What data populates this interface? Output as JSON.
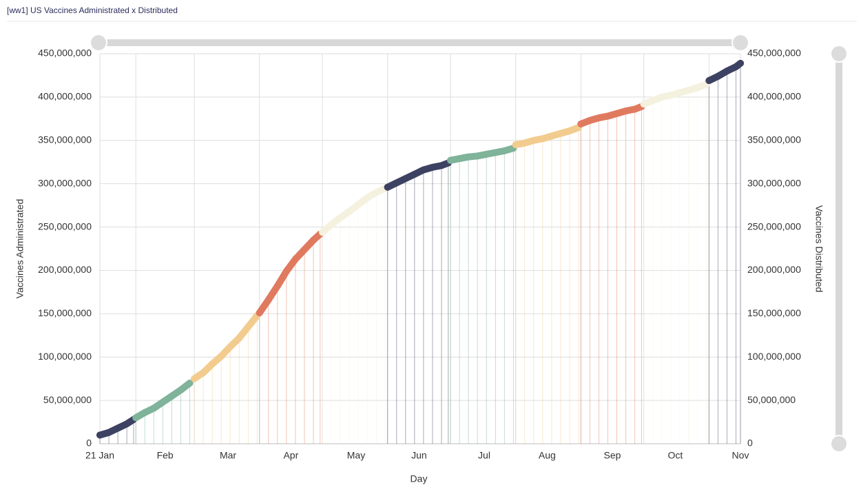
{
  "chart_data": {
    "type": "line",
    "title": "[ww1] US Vaccines Administrated x Distributed",
    "x_label": "Day",
    "y_label": "Vaccines Administrated",
    "y2_label": "Vaccines Distributed",
    "xlim": [
      0,
      285
    ],
    "xticks": [
      {
        "value": 0,
        "label": "21 Jan"
      },
      {
        "value": 29,
        "label": "Feb"
      },
      {
        "value": 57,
        "label": "Mar"
      },
      {
        "value": 85,
        "label": "Apr"
      },
      {
        "value": 114,
        "label": "May"
      },
      {
        "value": 142,
        "label": "Jun"
      },
      {
        "value": 171,
        "label": "Jul"
      },
      {
        "value": 199,
        "label": "Aug"
      },
      {
        "value": 228,
        "label": "Sep"
      },
      {
        "value": 256,
        "label": "Oct"
      },
      {
        "value": 285,
        "label": "Nov"
      }
    ],
    "ylim": [
      0,
      450000000
    ],
    "yticks": [
      0,
      {
        "value": 50000000,
        "label": "50,000,000"
      },
      {
        "value": 100000000,
        "label": "100,000,000"
      },
      {
        "value": 150000000,
        "label": "150,000,000"
      },
      {
        "value": 200000000,
        "label": "200,000,000"
      },
      {
        "value": 250000000,
        "label": "250,000,000"
      },
      {
        "value": 300000000,
        "label": "300,000,000"
      },
      {
        "value": 350000000,
        "label": "350,000,000"
      },
      {
        "value": 400000000,
        "label": "400,000,000"
      },
      {
        "value": 450000000,
        "label": "450,000,000"
      }
    ],
    "y2lim": [
      0,
      450000000
    ],
    "y2ticks": [
      0,
      {
        "value": 50000000,
        "label": "50,000,000"
      },
      {
        "value": 100000000,
        "label": "100,000,000"
      },
      {
        "value": 150000000,
        "label": "150,000,000"
      },
      {
        "value": 200000000,
        "label": "200,000,000"
      },
      {
        "value": 250000000,
        "label": "250,000,000"
      },
      {
        "value": 300000000,
        "label": "300,000,000"
      },
      {
        "value": 350000000,
        "label": "350,000,000"
      },
      {
        "value": 400000000,
        "label": "400,000,000"
      },
      {
        "value": 450000000,
        "label": "450,000,000"
      }
    ],
    "grid": true,
    "series": [
      {
        "color": "#3d4262",
        "x": [
          0,
          4,
          8,
          12,
          15
        ],
        "values": [
          10000000,
          13000000,
          18000000,
          23000000,
          28000000
        ]
      },
      {
        "color": "#7fb39a",
        "x": [
          16,
          20,
          24,
          28,
          32,
          36,
          40
        ],
        "values": [
          30000000,
          36000000,
          41000000,
          48000000,
          55000000,
          62000000,
          70000000
        ]
      },
      {
        "color": "#f2cc8f",
        "x": [
          42,
          46,
          50,
          54,
          58,
          62,
          66,
          70
        ],
        "values": [
          75000000,
          82000000,
          92000000,
          101000000,
          112000000,
          122000000,
          135000000,
          148000000
        ]
      },
      {
        "color": "#e07a5f",
        "x": [
          71,
          75,
          79,
          83,
          87,
          91,
          95,
          98
        ],
        "values": [
          151000000,
          166000000,
          182000000,
          199000000,
          213000000,
          224000000,
          235000000,
          242000000
        ]
      },
      {
        "color": "#f4f1de",
        "x": [
          99,
          103,
          107,
          111,
          115,
          119,
          123,
          127
        ],
        "values": [
          244000000,
          253000000,
          261000000,
          268000000,
          276000000,
          284000000,
          290000000,
          295000000
        ]
      },
      {
        "color": "#3d4262",
        "x": [
          128,
          132,
          136,
          140,
          144,
          148,
          152,
          155
        ],
        "values": [
          296000000,
          301000000,
          306000000,
          311000000,
          316000000,
          319000000,
          321000000,
          324000000
        ]
      },
      {
        "color": "#7fb39a",
        "x": [
          156,
          160,
          164,
          168,
          172,
          176,
          180,
          184
        ],
        "values": [
          327000000,
          329000000,
          331000000,
          332000000,
          334000000,
          336000000,
          338000000,
          341000000
        ]
      },
      {
        "color": "#f2cc8f",
        "x": [
          185,
          189,
          193,
          197,
          201,
          205,
          209,
          213
        ],
        "values": [
          345000000,
          347000000,
          350000000,
          352000000,
          355000000,
          358000000,
          361000000,
          365000000
        ]
      },
      {
        "color": "#e07a5f",
        "x": [
          214,
          218,
          222,
          226,
          230,
          234,
          238,
          241
        ],
        "values": [
          369000000,
          373000000,
          376000000,
          378000000,
          381000000,
          384000000,
          386000000,
          389000000
        ]
      },
      {
        "color": "#f4f1de",
        "x": [
          242,
          246,
          250,
          254,
          258,
          262,
          266,
          270
        ],
        "values": [
          392000000,
          396000000,
          400000000,
          402000000,
          405000000,
          408000000,
          411000000,
          415000000
        ]
      },
      {
        "color": "#3d4262",
        "x": [
          271,
          275,
          279,
          283,
          285
        ],
        "values": [
          419000000,
          424000000,
          430000000,
          435000000,
          439000000
        ]
      }
    ]
  }
}
